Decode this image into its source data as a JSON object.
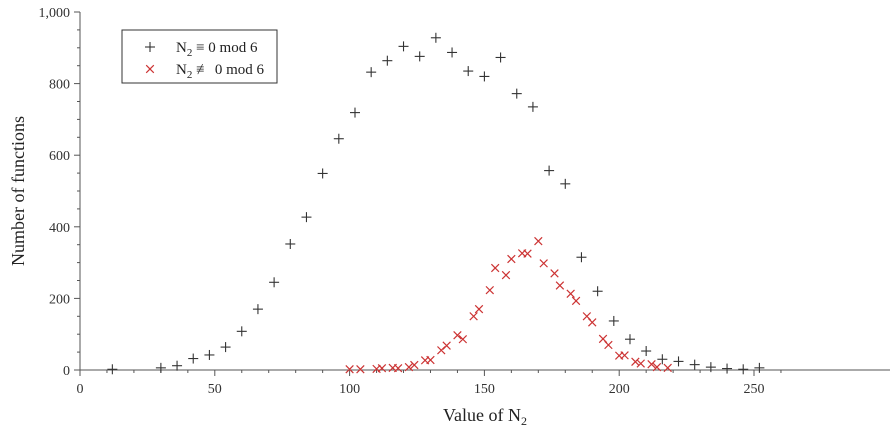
{
  "chart_data": {
    "type": "scatter",
    "xlabel_main": "Value of N",
    "xlabel_sub": "2",
    "ylabel": "Number of functions",
    "xlim": [
      0,
      265
    ],
    "ylim": [
      0,
      1000
    ],
    "x_ticks": [
      0,
      50,
      100,
      150,
      200,
      250
    ],
    "x_tick_labels": [
      "0",
      "50",
      "100",
      "150",
      "200",
      "250"
    ],
    "y_ticks": [
      0,
      200,
      400,
      600,
      800,
      1000
    ],
    "y_tick_labels": [
      "0",
      "200",
      "400",
      "600",
      "800",
      "1,000"
    ],
    "grid": false,
    "legend_placement": "top-left",
    "series": [
      {
        "label_main": "N",
        "label_sub": "2",
        "label_rest": " ≡ 0 mod 6",
        "marker": "plus",
        "color": "#333333",
        "x": [
          12,
          30,
          36,
          42,
          48,
          54,
          60,
          66,
          72,
          78,
          84,
          90,
          96,
          102,
          108,
          114,
          120,
          126,
          132,
          138,
          144,
          150,
          156,
          162,
          168,
          174,
          180,
          186,
          192,
          198,
          204,
          210,
          216,
          222,
          228,
          234,
          240,
          246,
          252
        ],
        "y": [
          2,
          6,
          12,
          32,
          42,
          64,
          108,
          170,
          245,
          352,
          427,
          549,
          646,
          719,
          832,
          864,
          904,
          876,
          928,
          887,
          835,
          820,
          873,
          772,
          735,
          557,
          520,
          315,
          220,
          137,
          86,
          53,
          30,
          24,
          15,
          8,
          4,
          2,
          6
        ]
      },
      {
        "label_main": "N",
        "label_sub": "2",
        "label_rest": " ≢ 0 mod 6",
        "marker": "cross",
        "color": "#cc3333",
        "x": [
          100,
          104,
          110,
          112,
          116,
          118,
          122,
          124,
          128,
          130,
          134,
          136,
          140,
          142,
          146,
          148,
          152,
          154,
          158,
          160,
          164,
          166,
          170,
          172,
          176,
          178,
          182,
          184,
          188,
          190,
          194,
          196,
          200,
          202,
          206,
          208,
          212,
          214,
          218
        ],
        "y": [
          2,
          2,
          3,
          5,
          6,
          5,
          8,
          14,
          27,
          28,
          55,
          68,
          97,
          86,
          150,
          170,
          223,
          285,
          265,
          310,
          326,
          325,
          360,
          298,
          270,
          236,
          213,
          193,
          150,
          133,
          87,
          70,
          40,
          41,
          23,
          18,
          16,
          8,
          6
        ]
      }
    ]
  }
}
